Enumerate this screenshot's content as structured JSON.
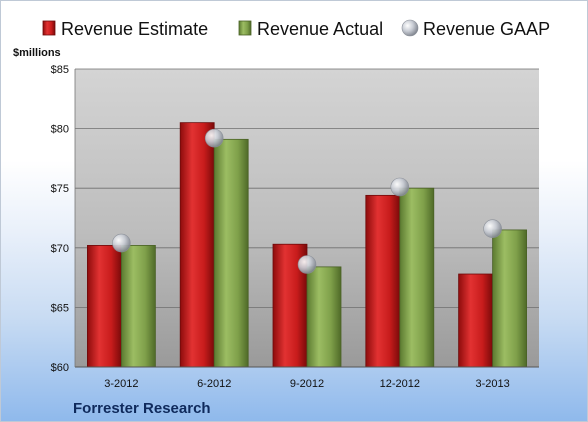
{
  "chart_data": {
    "type": "bar",
    "categories": [
      "3-2012",
      "6-2012",
      "9-2012",
      "12-2012",
      "3-2013"
    ],
    "series": [
      {
        "name": "Revenue Estimate",
        "kind": "bar",
        "color": "#cc1f1f",
        "values": [
          70.2,
          80.5,
          70.3,
          74.4,
          67.8
        ]
      },
      {
        "name": "Revenue Actual",
        "kind": "bar",
        "color": "#7ea04a",
        "values": [
          70.2,
          79.1,
          68.4,
          75.0,
          71.5
        ]
      },
      {
        "name": "Revenue GAAP",
        "kind": "marker",
        "color": "#b8bcc6",
        "values": [
          70.4,
          79.2,
          68.6,
          75.1,
          71.6
        ]
      }
    ],
    "ylabel": "$millions",
    "ylim": [
      60,
      85
    ],
    "yticks": [
      60,
      65,
      70,
      75,
      80,
      85
    ],
    "ytick_labels": [
      "$60",
      "$65",
      "$70",
      "$75",
      "$80",
      "$85"
    ],
    "grid": true,
    "legend": "top",
    "source": "Forrester Research"
  }
}
